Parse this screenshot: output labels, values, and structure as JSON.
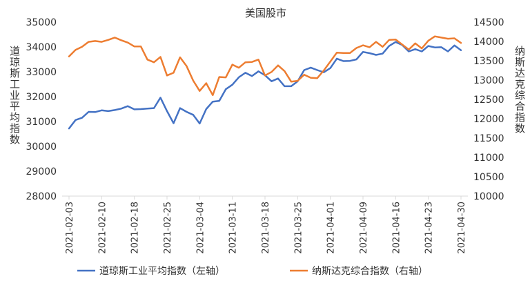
{
  "colors": {
    "series_left": "#4472C4",
    "series_right": "#ED7D31",
    "axis": "#d9d9d9",
    "text": "#333333"
  },
  "chart_data": {
    "type": "line",
    "title": "美国股市",
    "xlabel": "",
    "ylabel_left": "道琼斯工业平均指数",
    "ylabel_right": "纳斯达克综合指数",
    "ylim_left": [
      28000,
      35000
    ],
    "ylim_right": [
      10000,
      14500
    ],
    "yticks_left": [
      28000,
      29000,
      30000,
      31000,
      32000,
      33000,
      34000,
      35000
    ],
    "yticks_right": [
      10000,
      10500,
      11000,
      11500,
      12000,
      12500,
      13000,
      13500,
      14000,
      14500
    ],
    "xtick_labels": [
      "2021-02-03",
      "2021-02-10",
      "2021-02-18",
      "2021-02-25",
      "2021-03-04",
      "2021-03-11",
      "2021-03-18",
      "2021-03-25",
      "2021-04-01",
      "2021-04-09",
      "2021-04-16",
      "2021-04-23",
      "2021-04-30"
    ],
    "grid": false,
    "legend_position": "bottom",
    "x": [
      "2021-02-03",
      "2021-02-04",
      "2021-02-05",
      "2021-02-08",
      "2021-02-09",
      "2021-02-10",
      "2021-02-11",
      "2021-02-12",
      "2021-02-16",
      "2021-02-17",
      "2021-02-18",
      "2021-02-19",
      "2021-02-22",
      "2021-02-23",
      "2021-02-24",
      "2021-02-25",
      "2021-02-26",
      "2021-03-01",
      "2021-03-02",
      "2021-03-03",
      "2021-03-04",
      "2021-03-05",
      "2021-03-08",
      "2021-03-09",
      "2021-03-10",
      "2021-03-11",
      "2021-03-12",
      "2021-03-15",
      "2021-03-16",
      "2021-03-17",
      "2021-03-18",
      "2021-03-19",
      "2021-03-22",
      "2021-03-23",
      "2021-03-24",
      "2021-03-25",
      "2021-03-26",
      "2021-03-29",
      "2021-03-30",
      "2021-03-31",
      "2021-04-01",
      "2021-04-05",
      "2021-04-06",
      "2021-04-07",
      "2021-04-08",
      "2021-04-09",
      "2021-04-12",
      "2021-04-13",
      "2021-04-14",
      "2021-04-15",
      "2021-04-16",
      "2021-04-19",
      "2021-04-20",
      "2021-04-21",
      "2021-04-22",
      "2021-04-23",
      "2021-04-26",
      "2021-04-27",
      "2021-04-28",
      "2021-04-29",
      "2021-04-30"
    ],
    "series": [
      {
        "name": "道琼斯工业平均指数（左轴）",
        "axis": "left",
        "values": [
          30720,
          31060,
          31150,
          31390,
          31380,
          31450,
          31420,
          31460,
          31520,
          31620,
          31490,
          31500,
          31520,
          31540,
          31960,
          31420,
          30930,
          31540,
          31390,
          31270,
          30920,
          31500,
          31800,
          31830,
          32300,
          32480,
          32780,
          32960,
          32830,
          33020,
          32860,
          32620,
          32730,
          32420,
          32420,
          32620,
          33070,
          33170,
          33070,
          32980,
          33150,
          33530,
          33430,
          33440,
          33500,
          33800,
          33750,
          33680,
          33730,
          34040,
          34200,
          34080,
          33820,
          33910,
          33820,
          34040,
          33980,
          33990,
          33820,
          34060,
          33870
        ]
      },
      {
        "name": "纳斯达克综合指数（右轴）",
        "axis": "right",
        "values": [
          13610,
          13780,
          13860,
          13990,
          14010,
          13990,
          14040,
          14100,
          14030,
          13970,
          13870,
          13870,
          13530,
          13460,
          13600,
          13120,
          13190,
          13590,
          13360,
          12990,
          12720,
          12920,
          12610,
          13080,
          13070,
          13400,
          13320,
          13460,
          13470,
          13530,
          13120,
          13210,
          13380,
          13230,
          12960,
          12980,
          13140,
          13060,
          13050,
          13250,
          13480,
          13710,
          13700,
          13700,
          13830,
          13900,
          13850,
          13990,
          13860,
          14040,
          14050,
          13920,
          13790,
          13950,
          13820,
          14020,
          14130,
          14100,
          14070,
          14080,
          13960
        ]
      }
    ]
  }
}
